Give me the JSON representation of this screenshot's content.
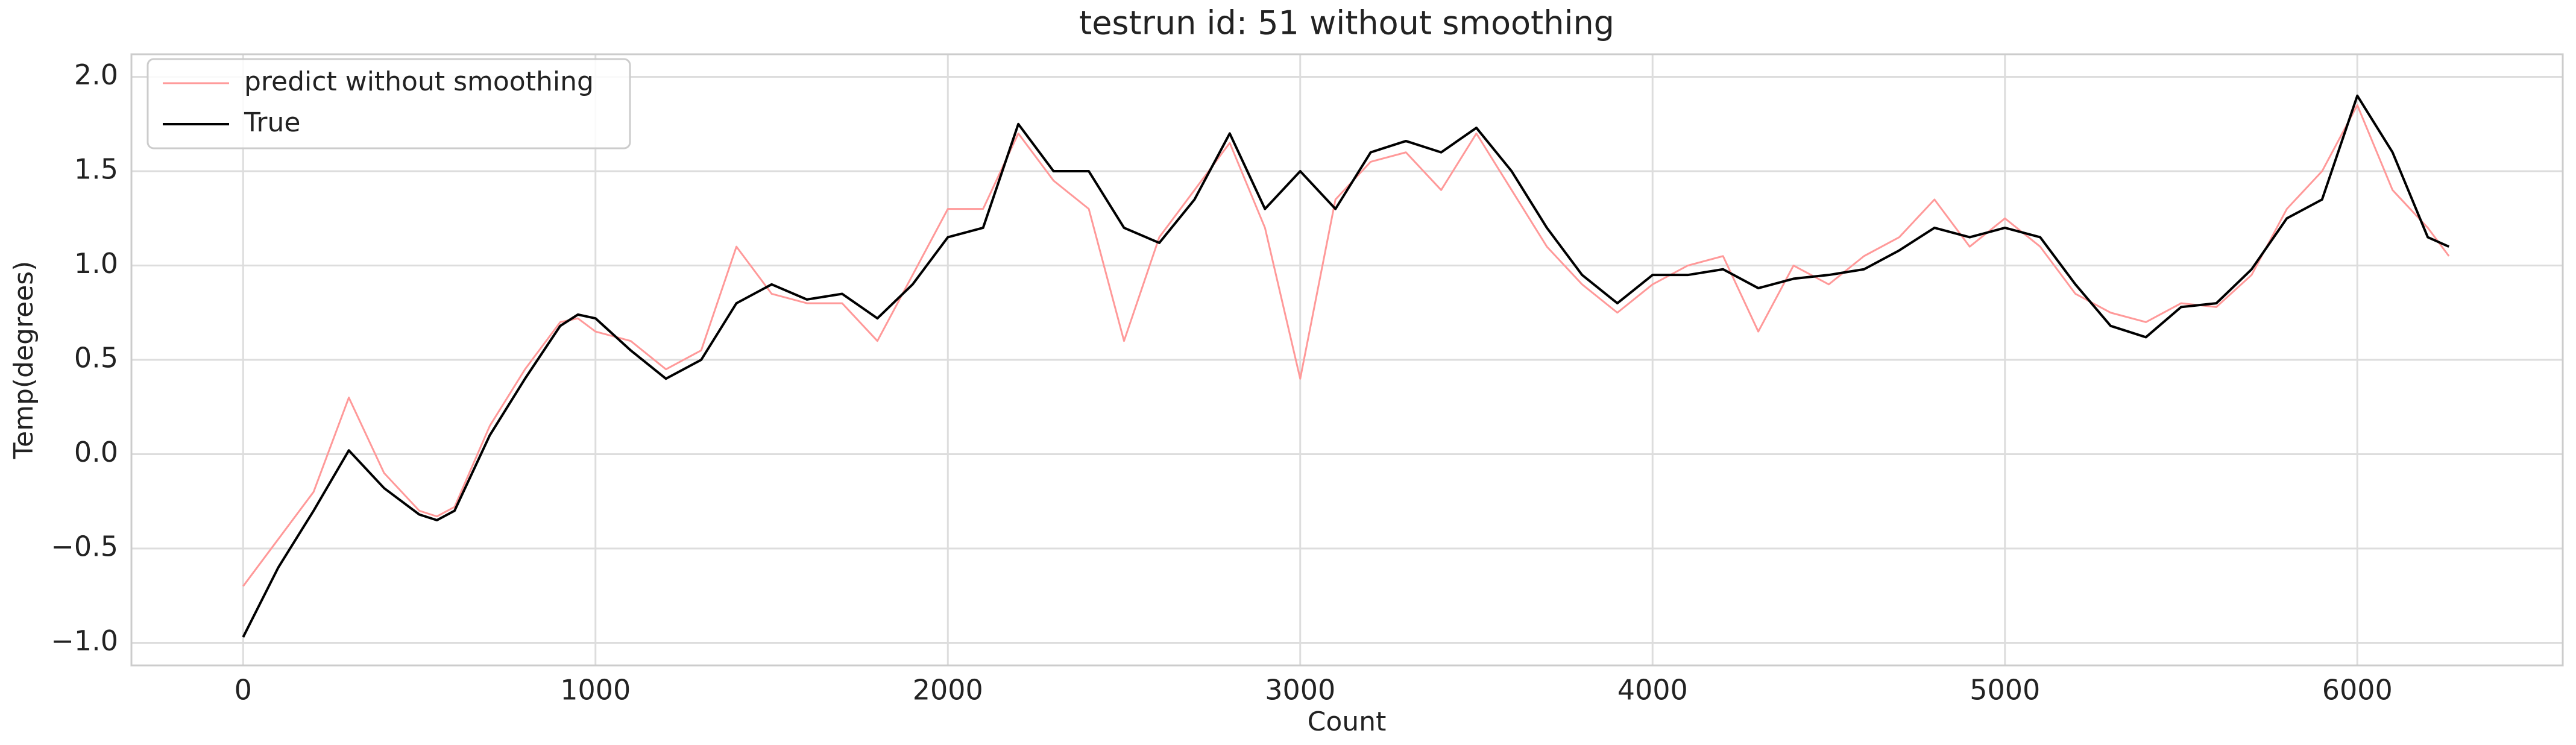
{
  "chart_data": {
    "type": "line",
    "title": "testrun id: 51 without smoothing",
    "xlabel": "Count",
    "ylabel": "Temp(degrees)",
    "x": [
      0,
      100,
      200,
      300,
      400,
      500,
      550,
      600,
      700,
      800,
      900,
      950,
      1000,
      1100,
      1200,
      1300,
      1400,
      1500,
      1600,
      1700,
      1800,
      1900,
      2000,
      2100,
      2200,
      2300,
      2400,
      2500,
      2600,
      2700,
      2800,
      2900,
      3000,
      3100,
      3200,
      3300,
      3400,
      3500,
      3600,
      3700,
      3800,
      3900,
      4000,
      4100,
      4200,
      4300,
      4400,
      4500,
      4600,
      4700,
      4800,
      4900,
      5000,
      5100,
      5200,
      5300,
      5400,
      5500,
      5600,
      5700,
      5800,
      5900,
      6000,
      6100,
      6200,
      6260
    ],
    "series": [
      {
        "name": "predict without smoothing",
        "color": "#ff9999",
        "values": [
          -0.7,
          -0.45,
          -0.2,
          0.3,
          -0.1,
          -0.3,
          -0.33,
          -0.28,
          0.15,
          0.45,
          0.7,
          0.72,
          0.65,
          0.6,
          0.45,
          0.55,
          1.1,
          0.85,
          0.8,
          0.8,
          0.6,
          0.95,
          1.3,
          1.3,
          1.7,
          1.45,
          1.3,
          0.6,
          1.15,
          1.4,
          1.65,
          1.2,
          0.4,
          1.35,
          1.55,
          1.6,
          1.4,
          1.7,
          1.4,
          1.1,
          0.9,
          0.75,
          0.9,
          1.0,
          1.05,
          0.65,
          1.0,
          0.9,
          1.05,
          1.15,
          1.35,
          1.1,
          1.25,
          1.1,
          0.85,
          0.75,
          0.7,
          0.8,
          0.78,
          0.95,
          1.3,
          1.5,
          1.85,
          1.4,
          1.2,
          1.05
        ]
      },
      {
        "name": "True",
        "color": "#000000",
        "values": [
          -0.97,
          -0.6,
          -0.3,
          0.02,
          -0.18,
          -0.32,
          -0.35,
          -0.3,
          0.1,
          0.4,
          0.68,
          0.74,
          0.72,
          0.55,
          0.4,
          0.5,
          0.8,
          0.9,
          0.82,
          0.85,
          0.72,
          0.9,
          1.15,
          1.2,
          1.75,
          1.5,
          1.5,
          1.2,
          1.12,
          1.35,
          1.7,
          1.3,
          1.5,
          1.3,
          1.6,
          1.66,
          1.6,
          1.73,
          1.5,
          1.2,
          0.95,
          0.8,
          0.95,
          0.95,
          0.98,
          0.88,
          0.93,
          0.95,
          0.98,
          1.08,
          1.2,
          1.15,
          1.2,
          1.15,
          0.9,
          0.68,
          0.62,
          0.78,
          0.8,
          0.98,
          1.25,
          1.35,
          1.9,
          1.6,
          1.15,
          1.1
        ]
      }
    ],
    "xlim": [
      -317,
      6583
    ],
    "ylim": [
      -1.12,
      2.12
    ],
    "xticks": [
      0,
      1000,
      2000,
      3000,
      4000,
      5000,
      6000
    ],
    "yticks": [
      {
        "value": -1,
        "label": "−1.0"
      },
      {
        "value": -0.5,
        "label": "−0.5"
      },
      {
        "value": 0,
        "label": "0.0"
      },
      0.5,
      {
        "value": 1,
        "label": "1.0"
      },
      1.5,
      {
        "value": 2,
        "label": "2.0"
      }
    ],
    "grid": true,
    "legend": "upper left"
  }
}
